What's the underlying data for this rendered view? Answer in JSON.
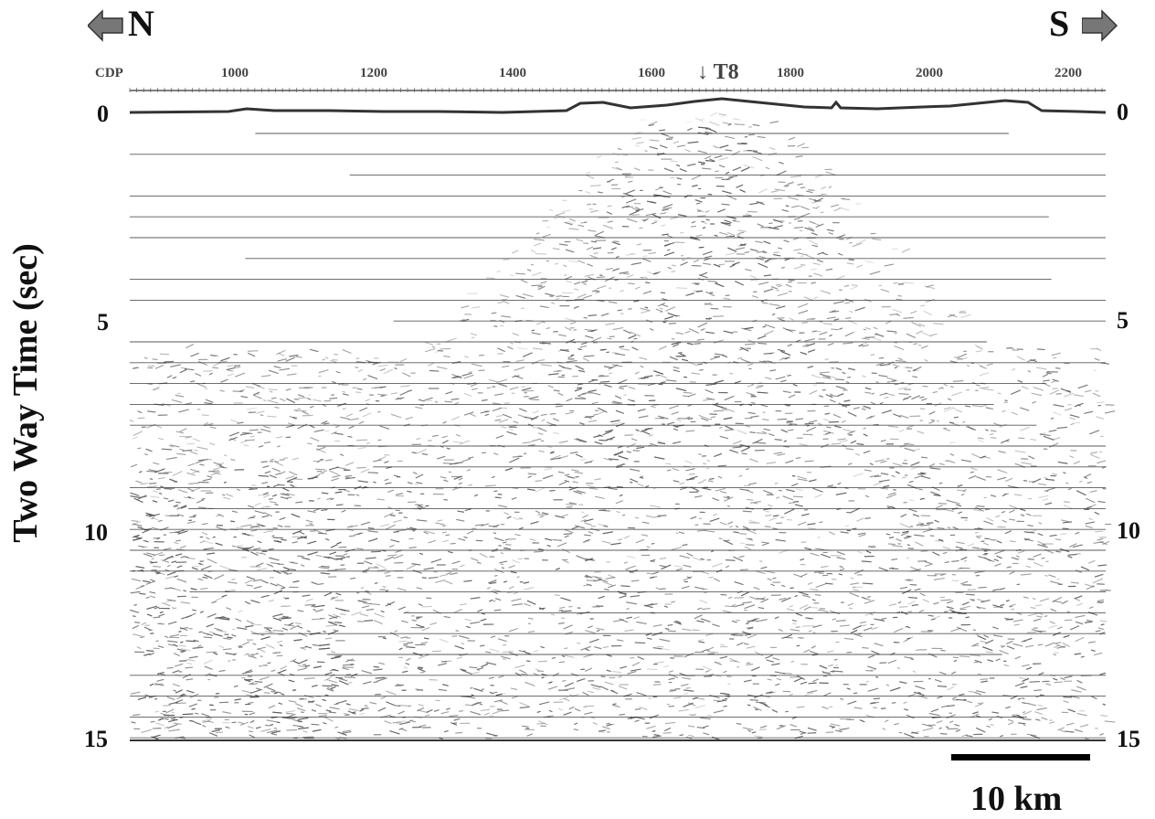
{
  "figure": {
    "left_direction": "N",
    "right_direction": "S",
    "axis_top_label": "CDP",
    "cdp_ticks": [
      "1000",
      "1200",
      "1400",
      "1600",
      "1800",
      "2000",
      "2200"
    ],
    "marker_label": "↓ T8",
    "y_axis_label": "Two Way Time (sec)",
    "y_ticks_left": [
      "0",
      "5",
      "10",
      "15"
    ],
    "y_ticks_right": [
      "0",
      "5",
      "10",
      "15"
    ],
    "scale_bar_label": "10 km",
    "colors": {
      "arrow_fill": "#777777",
      "trace": "#222222",
      "noise": "#555555"
    }
  }
}
